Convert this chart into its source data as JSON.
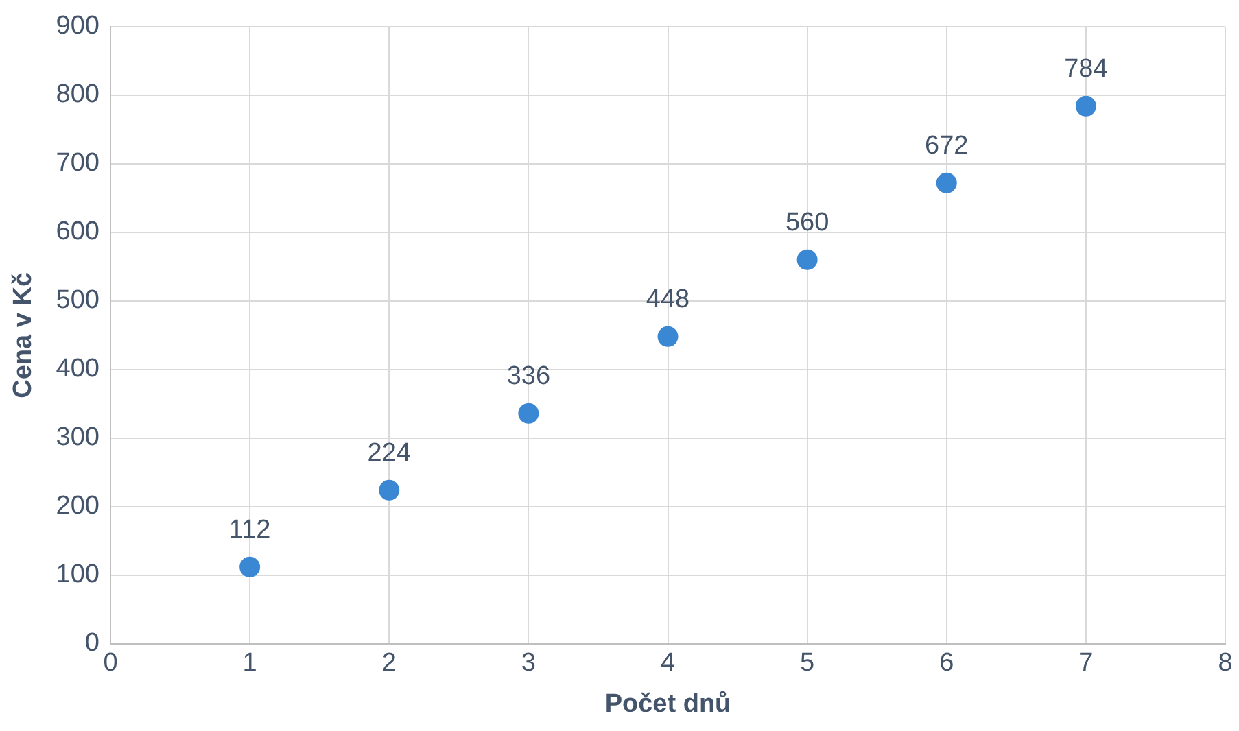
{
  "chart_data": {
    "type": "scatter",
    "xlabel": "Počet dnů",
    "ylabel": "Cena v Kč",
    "x": [
      1,
      2,
      3,
      4,
      5,
      6,
      7
    ],
    "series": [
      {
        "color": "#3a87d4",
        "values": [
          112,
          224,
          336,
          448,
          560,
          672,
          784
        ]
      }
    ],
    "xlim": [
      0,
      8
    ],
    "xticks": [
      0,
      1,
      2,
      3,
      4,
      5,
      6,
      7,
      8
    ],
    "ylim": [
      0,
      900
    ],
    "yticks": [
      0,
      100,
      200,
      300,
      400,
      500,
      600,
      700,
      800,
      900
    ],
    "grid": true,
    "legend": false,
    "marker": "circle",
    "data_labels": true
  }
}
